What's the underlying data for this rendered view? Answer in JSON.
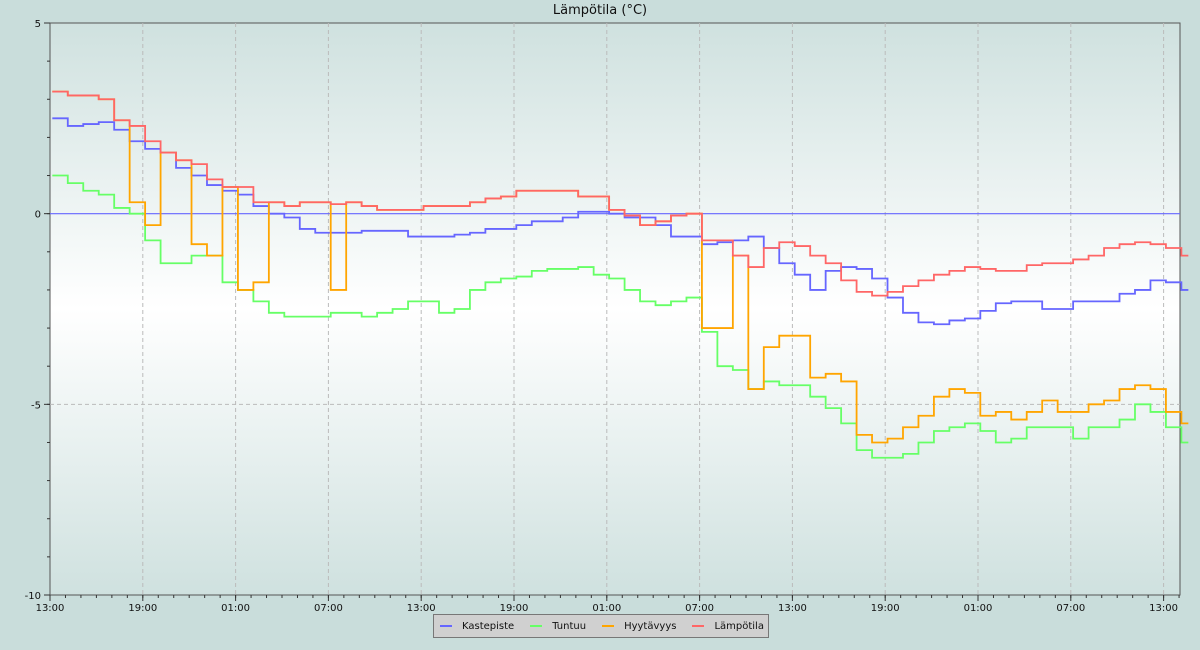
{
  "chart_data": {
    "type": "line",
    "title": "Lämpötila (°C)",
    "xlabel": "",
    "ylabel": "",
    "ylim": [
      -10,
      5
    ],
    "yticks": [
      5,
      0,
      -5,
      -10
    ],
    "xlim_hours": [
      0,
      73
    ],
    "xtick_labels": [
      "13:00",
      "19:00",
      "01:00",
      "07:00",
      "13:00",
      "19:00",
      "01:00",
      "07:00",
      "13:00",
      "19:00",
      "01:00",
      "07:00",
      "13:00"
    ],
    "x_unit": "hours from first 13:00",
    "grid": true,
    "legend_position": "bottom",
    "x": [
      0,
      1,
      2,
      3,
      4,
      5,
      6,
      7,
      8,
      9,
      10,
      11,
      12,
      13,
      14,
      15,
      16,
      17,
      18,
      19,
      20,
      21,
      22,
      23,
      24,
      25,
      26,
      27,
      28,
      29,
      30,
      31,
      32,
      33,
      34,
      35,
      36,
      37,
      38,
      39,
      40,
      41,
      42,
      43,
      44,
      45,
      46,
      47,
      48,
      49,
      50,
      51,
      52,
      53,
      54,
      55,
      56,
      57,
      58,
      59,
      60,
      61,
      62,
      63,
      64,
      65,
      66,
      67,
      68,
      69,
      70,
      71,
      72,
      73
    ],
    "series": [
      {
        "name": "Kastepiste",
        "color": "#6666ff",
        "values": [
          2.5,
          2.3,
          2.35,
          2.4,
          2.2,
          1.9,
          1.7,
          1.6,
          1.2,
          1.0,
          0.75,
          0.6,
          0.5,
          0.2,
          0.0,
          -0.1,
          -0.4,
          -0.5,
          -0.5,
          -0.5,
          -0.45,
          -0.45,
          -0.45,
          -0.6,
          -0.6,
          -0.6,
          -0.55,
          -0.5,
          -0.4,
          -0.4,
          -0.3,
          -0.2,
          -0.2,
          -0.1,
          0.05,
          0.05,
          0.0,
          -0.1,
          -0.1,
          -0.3,
          -0.6,
          -0.6,
          -0.8,
          -0.75,
          -0.7,
          -0.6,
          -0.9,
          -1.3,
          -1.6,
          -2.0,
          -1.5,
          -1.4,
          -1.45,
          -1.7,
          -2.2,
          -2.6,
          -2.85,
          -2.9,
          -2.8,
          -2.75,
          -2.55,
          -2.35,
          -2.3,
          -2.3,
          -2.5,
          -2.5,
          -2.3,
          -2.3,
          -2.3,
          -2.1,
          -2.0,
          -1.75,
          -1.8,
          -2.0
        ]
      },
      {
        "name": "Tuntuu",
        "color": "#66ff66",
        "values": [
          1.0,
          0.8,
          0.6,
          0.5,
          0.15,
          0.0,
          -0.7,
          -1.3,
          -1.3,
          -1.1,
          -1.1,
          -1.8,
          -2.0,
          -2.3,
          -2.6,
          -2.7,
          -2.7,
          -2.7,
          -2.6,
          -2.6,
          -2.7,
          -2.6,
          -2.5,
          -2.3,
          -2.3,
          -2.6,
          -2.5,
          -2.0,
          -1.8,
          -1.7,
          -1.65,
          -1.5,
          -1.45,
          -1.45,
          -1.4,
          -1.6,
          -1.7,
          -2.0,
          -2.3,
          -2.4,
          -2.3,
          -2.2,
          -3.1,
          -4.0,
          -4.1,
          -4.6,
          -4.4,
          -4.5,
          -4.5,
          -4.8,
          -5.1,
          -5.5,
          -6.2,
          -6.4,
          -6.4,
          -6.3,
          -6.0,
          -5.7,
          -5.6,
          -5.5,
          -5.7,
          -6.0,
          -5.9,
          -5.6,
          -5.6,
          -5.6,
          -5.9,
          -5.6,
          -5.6,
          -5.4,
          -5.0,
          -5.2,
          -5.6,
          -6.0
        ]
      },
      {
        "name": "Hyytävyys",
        "color": "#ffa500",
        "values": [
          3.2,
          3.1,
          3.1,
          3.0,
          2.45,
          0.3,
          -0.3,
          1.6,
          1.4,
          -0.8,
          -1.1,
          0.7,
          -2.0,
          -1.8,
          0.3,
          0.2,
          0.3,
          0.3,
          -2.0,
          0.3,
          0.2,
          0.1,
          0.1,
          0.1,
          0.2,
          0.2,
          0.2,
          0.3,
          0.4,
          0.45,
          0.6,
          0.6,
          0.6,
          0.6,
          0.45,
          0.45,
          0.1,
          -0.05,
          -0.3,
          -0.2,
          -0.05,
          0.0,
          -3.0,
          -3.0,
          -1.1,
          -4.6,
          -3.5,
          -3.2,
          -3.2,
          -4.3,
          -4.2,
          -4.4,
          -5.8,
          -6.0,
          -5.9,
          -5.6,
          -5.3,
          -4.8,
          -4.6,
          -4.7,
          -5.3,
          -5.2,
          -5.4,
          -5.2,
          -4.9,
          -5.2,
          -5.2,
          -5.0,
          -4.9,
          -4.6,
          -4.5,
          -4.6,
          -5.2,
          -5.5
        ]
      },
      {
        "name": "Lämpötila",
        "color": "#ff6666",
        "values": [
          3.2,
          3.1,
          3.1,
          3.0,
          2.45,
          2.3,
          1.9,
          1.6,
          1.4,
          1.3,
          0.9,
          0.7,
          0.7,
          0.3,
          0.3,
          0.2,
          0.3,
          0.3,
          0.25,
          0.3,
          0.2,
          0.1,
          0.1,
          0.1,
          0.2,
          0.2,
          0.2,
          0.3,
          0.4,
          0.45,
          0.6,
          0.6,
          0.6,
          0.6,
          0.45,
          0.45,
          0.1,
          -0.05,
          -0.3,
          -0.2,
          -0.05,
          0.0,
          -0.7,
          -0.7,
          -1.1,
          -1.4,
          -0.9,
          -0.75,
          -0.85,
          -1.1,
          -1.3,
          -1.75,
          -2.05,
          -2.15,
          -2.05,
          -1.9,
          -1.75,
          -1.6,
          -1.5,
          -1.4,
          -1.45,
          -1.5,
          -1.5,
          -1.35,
          -1.3,
          -1.3,
          -1.2,
          -1.1,
          -0.9,
          -0.8,
          -0.75,
          -0.8,
          -0.9,
          -1.1
        ]
      }
    ]
  }
}
